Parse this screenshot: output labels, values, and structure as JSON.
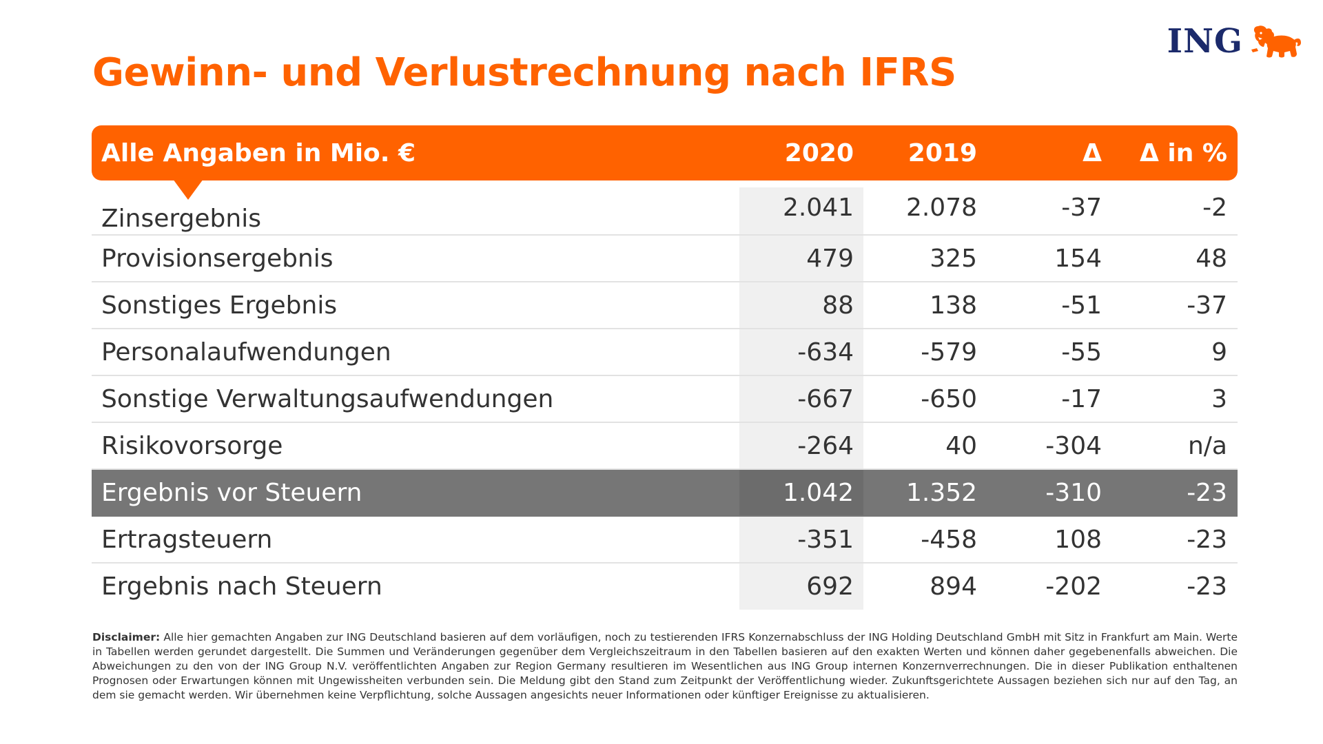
{
  "brand": {
    "name": "ING",
    "logo_icon": "lion-icon",
    "accent": "#ff6200",
    "navy": "#1b2a6b",
    "highlight_row": "#767676"
  },
  "title": "Gewinn- und Verlustrechnung nach IFRS",
  "table": {
    "header": {
      "label": "Alle Angaben in Mio. €",
      "col_2020": "2020",
      "col_2019": "2019",
      "col_delta": "Δ",
      "col_delta_pct": "Δ in %"
    },
    "rows": [
      {
        "label": "Zinsergebnis",
        "v2020": "2.041",
        "v2019": "2.078",
        "delta": "-37",
        "delta_pct": "-2"
      },
      {
        "label": "Provisionsergebnis",
        "v2020": "479",
        "v2019": "325",
        "delta": "154",
        "delta_pct": "48"
      },
      {
        "label": "Sonstiges Ergebnis",
        "v2020": "88",
        "v2019": "138",
        "delta": "-51",
        "delta_pct": "-37"
      },
      {
        "label": "Personalaufwendungen",
        "v2020": "-634",
        "v2019": "-579",
        "delta": "-55",
        "delta_pct": "9"
      },
      {
        "label": "Sonstige Verwaltungsaufwendungen",
        "v2020": "-667",
        "v2019": "-650",
        "delta": "-17",
        "delta_pct": "3"
      },
      {
        "label": "Risikovorsorge",
        "v2020": "-264",
        "v2019": "40",
        "delta": "-304",
        "delta_pct": "n/a"
      },
      {
        "label": "Ergebnis vor Steuern",
        "v2020": "1.042",
        "v2019": "1.352",
        "delta": "-310",
        "delta_pct": "-23"
      },
      {
        "label": "Ertragsteuern",
        "v2020": "-351",
        "v2019": "-458",
        "delta": "108",
        "delta_pct": "-23"
      },
      {
        "label": "Ergebnis nach Steuern",
        "v2020": "692",
        "v2019": "894",
        "delta": "-202",
        "delta_pct": "-23"
      }
    ]
  },
  "disclaimer": {
    "lead": "Disclaimer:",
    "text": "Alle hier gemachten Angaben zur ING Deutschland basieren auf dem vorläufigen, noch zu testierenden IFRS Konzernabschluss der ING Holding Deutschland GmbH mit Sitz in Frankfurt am Main. Werte in Tabellen werden gerundet dargestellt. Die Summen und Veränderungen gegenüber dem Vergleichszeitraum in den Tabellen basieren auf den exakten Werten und können daher gegebenenfalls abweichen. Die Abweichungen zu den von der ING Group N.V. veröffentlichten Angaben zur Region Germany resultieren im Wesentlichen aus ING Group internen Konzernverrechnungen. Die in dieser Publikation enthaltenen Prognosen oder Erwartungen können mit Ungewissheiten verbunden sein. Die Meldung gibt den Stand zum Zeitpunkt der Veröffentlichung wieder. Zukunftsgerichtete Aussagen beziehen sich nur auf den Tag, an dem sie gemacht werden. Wir übernehmen keine Verpflichtung, solche Aussagen angesichts neuer Informationen oder künftiger Ereignisse zu aktualisieren."
  }
}
